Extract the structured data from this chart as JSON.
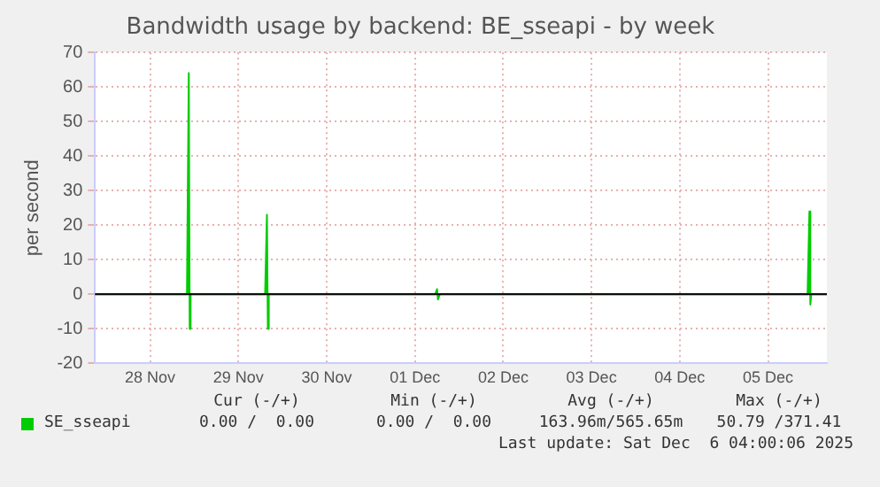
{
  "chart_data": {
    "type": "line",
    "title": "Bandwidth usage by backend: BE_sseapi - by week",
    "ylabel": "per second",
    "x": [
      "2025-11-27T21:00",
      "2025-11-28T22:00",
      "2025-11-28T22:30",
      "2025-11-28T22:45",
      "2025-11-28T23:00",
      "2025-11-29T19:15",
      "2025-11-29T19:45",
      "2025-11-29T20:00",
      "2025-11-29T20:15",
      "2025-12-01T17:30",
      "2025-12-01T18:00",
      "2025-12-01T18:15",
      "2025-12-01T18:45",
      "2025-12-05T22:45",
      "2025-12-05T23:15",
      "2025-12-05T23:30",
      "2025-12-05T23:45",
      "2025-12-06T04:00"
    ],
    "series": [
      {
        "name": "SE_sseapi",
        "color": "#00cc00",
        "values": [
          0,
          0,
          64,
          -10,
          0,
          0,
          23,
          -10,
          0,
          0,
          1.5,
          -1.5,
          0,
          0,
          24,
          -3,
          0,
          0
        ]
      }
    ],
    "xlim": [
      "2025-11-27T21:00",
      "2025-12-06T04:00"
    ],
    "xticks": [
      {
        "value": "2025-11-28T12:00",
        "label": "28 Nov"
      },
      {
        "value": "2025-11-29T12:00",
        "label": "29 Nov"
      },
      {
        "value": "2025-11-30T12:00",
        "label": "30 Nov"
      },
      {
        "value": "2025-12-01T12:00",
        "label": "01 Dec"
      },
      {
        "value": "2025-12-02T12:00",
        "label": "02 Dec"
      },
      {
        "value": "2025-12-03T12:00",
        "label": "03 Dec"
      },
      {
        "value": "2025-12-04T12:00",
        "label": "04 Dec"
      },
      {
        "value": "2025-12-05T12:00",
        "label": "05 Dec"
      }
    ],
    "ylim": [
      -20,
      70
    ],
    "yticks": [
      -20,
      -10,
      0,
      10,
      20,
      30,
      40,
      50,
      60,
      70
    ],
    "grid": true,
    "legend": "bottom left",
    "marker": "none",
    "ref_lines": [
      {
        "axis": "y",
        "value": 0,
        "color": "#000000"
      }
    ],
    "annotations": [
      "Cur (-/+)",
      "Min (-/+)",
      "Avg (-/+)",
      "Max (-/+)",
      "0.00 /  0.00",
      "0.00 /  0.00",
      "163.96m/565.65m",
      "50.79 /371.41",
      "Last update: Sat Dec  6 04:00:06 2025"
    ]
  }
}
